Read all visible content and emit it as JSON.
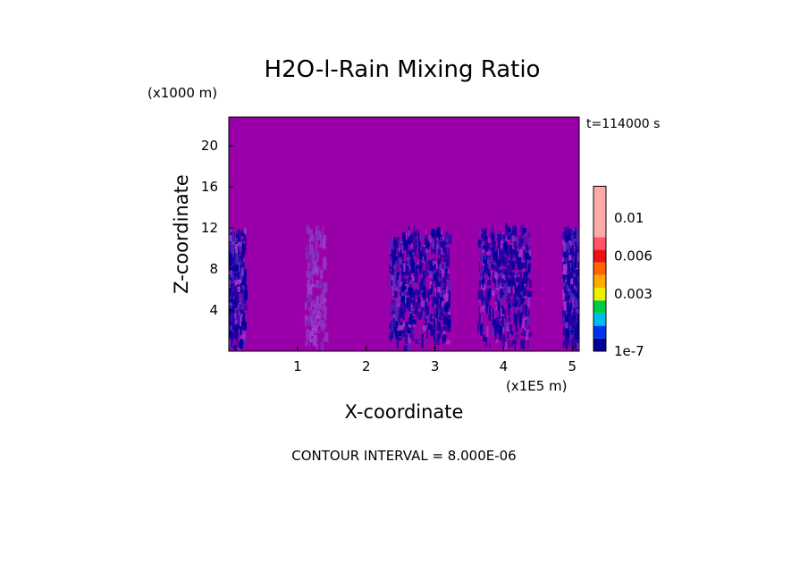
{
  "chart_data": {
    "type": "heatmap",
    "title": "H2O-l-Rain Mixing Ratio",
    "xlabel": "X-coordinate",
    "ylabel": "Z-coordinate",
    "x_unit": "(x1E5 m)",
    "y_unit": "(x1000 m)",
    "time_label": "t=114000 s",
    "footer": "CONTOUR INTERVAL = 8.000E-06",
    "xlim": [
      0,
      5.1
    ],
    "ylim": [
      0,
      22.8
    ],
    "x_ticks": [
      1,
      2,
      3,
      4,
      5
    ],
    "y_ticks": [
      4,
      8,
      12,
      16,
      20
    ],
    "x_tick_labels": [
      "1",
      "2",
      "3",
      "4",
      "5"
    ],
    "y_tick_labels": [
      "4",
      "8",
      "12",
      "16",
      "20"
    ],
    "background_color": "#9900aa",
    "colorbar": {
      "colors": [
        "#000099",
        "#0033ee",
        "#00bbee",
        "#00cc44",
        "#eeee00",
        "#ffaa00",
        "#ff6600",
        "#ee1111",
        "#ff5566",
        "#ffaaaa"
      ],
      "labels": [
        "1e-7",
        "0.003",
        "0.006",
        "0.01"
      ],
      "label_levels": [
        0,
        3,
        6,
        9
      ],
      "extend_color": "#ffaaaa"
    },
    "rain_columns": [
      {
        "x_center": 0.08,
        "width": 0.28,
        "top": 11.5,
        "intensity": "high"
      },
      {
        "x_center": 1.25,
        "width": 0.3,
        "top": 12.0,
        "intensity": "faint"
      },
      {
        "x_center": 2.42,
        "width": 0.18,
        "top": 11.0,
        "intensity": "medium"
      },
      {
        "x_center": 2.85,
        "width": 0.7,
        "top": 11.5,
        "intensity": "high"
      },
      {
        "x_center": 4.0,
        "width": 0.75,
        "top": 12.0,
        "intensity": "high"
      },
      {
        "x_center": 4.98,
        "width": 0.26,
        "top": 11.5,
        "intensity": "high"
      }
    ]
  }
}
